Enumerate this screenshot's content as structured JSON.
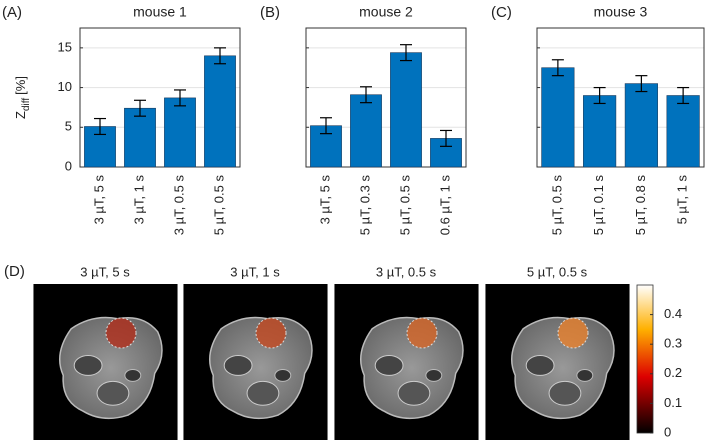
{
  "chart_data": [
    {
      "type": "bar",
      "panel": "(A)",
      "title": "mouse 1",
      "ylabel": {
        "main": "Z",
        "sub": "diff",
        "unit": "[%]"
      },
      "categories": [
        "3 µT, 5 s",
        "3 µT, 1 s",
        "3 µT, 0.5 s",
        "5 µT, 0.5 s"
      ],
      "values": [
        5.1,
        7.4,
        8.7,
        14.0
      ],
      "errors": [
        1.0,
        1.0,
        1.0,
        1.0
      ],
      "color": "#0072bd",
      "ylim": [
        0,
        17.5
      ],
      "yticks": [
        0,
        5,
        10,
        15
      ],
      "ytick_labels": true,
      "grid": true
    },
    {
      "type": "bar",
      "panel": "(B)",
      "title": "mouse 2",
      "categories": [
        "3 µT, 5 s",
        "5 µT, 0.3 s",
        "5 µT, 0.5 s",
        "0.6 µT, 1 s"
      ],
      "values": [
        5.2,
        9.1,
        14.4,
        3.6
      ],
      "errors": [
        1.0,
        1.0,
        1.0,
        1.0
      ],
      "color": "#0072bd",
      "ylim": [
        0,
        17.5
      ],
      "yticks": [
        0,
        5,
        10,
        15
      ],
      "ytick_labels": false,
      "grid": true
    },
    {
      "type": "bar",
      "panel": "(C)",
      "title": "mouse 3",
      "categories": [
        "5 µT, 0.5 s",
        "5 µT, 0.1 s",
        "5 µT, 0.8 s",
        "5 µT, 1 s"
      ],
      "values": [
        12.5,
        9.0,
        10.5,
        9.0
      ],
      "errors": [
        1.0,
        1.0,
        1.0,
        1.0
      ],
      "color": "#0072bd",
      "ylim": [
        0,
        17.5
      ],
      "yticks": [
        0,
        5,
        10,
        15
      ],
      "ytick_labels": false,
      "grid": true
    }
  ],
  "panel_d": {
    "panel": "(D)",
    "images": [
      "3 µT, 5 s",
      "3 µT, 1 s",
      "3 µT, 0.5 s",
      "5 µT, 0.5 s"
    ],
    "colorbar": {
      "lim": [
        0,
        0.5
      ],
      "ticks": [
        0,
        0.1,
        0.2,
        0.3,
        0.4
      ]
    }
  }
}
